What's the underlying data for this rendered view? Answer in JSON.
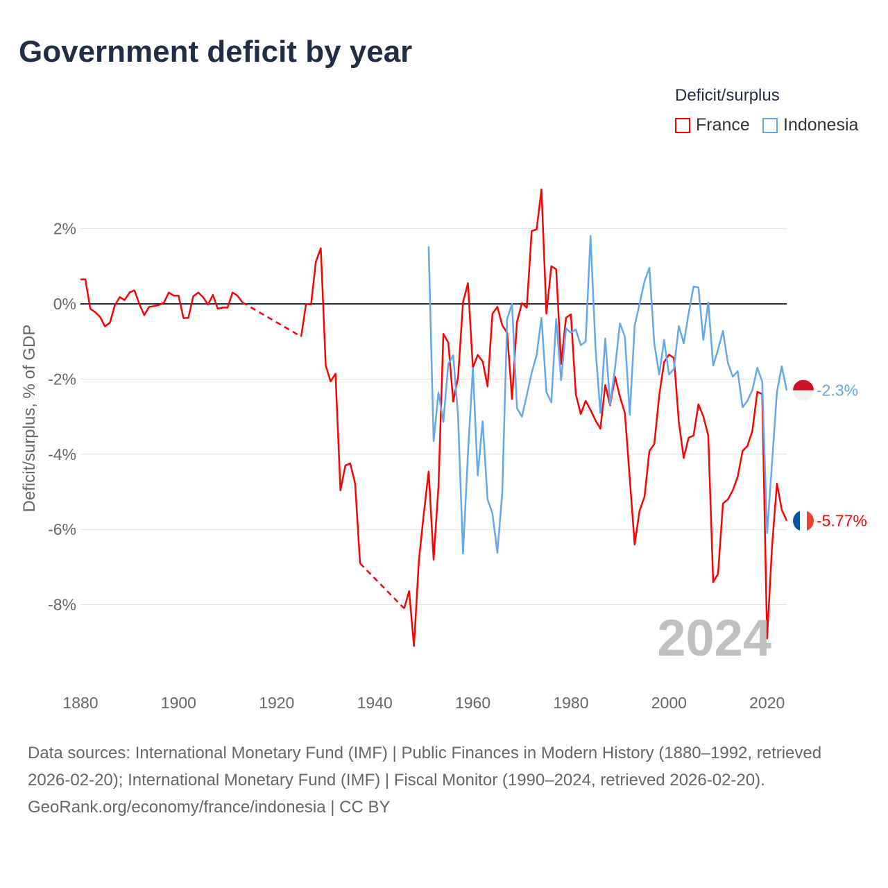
{
  "title": "Government deficit by year",
  "legend": {
    "title": "Deficit/surplus",
    "items": [
      {
        "name": "France",
        "color": "#ff0000"
      },
      {
        "name": "Indonesia",
        "color": "#64a8ea"
      }
    ]
  },
  "year_label": "2024",
  "footer": {
    "sources": "Data sources: International Monetary Fund (IMF) | Public Finances in Modern History (1880–1992, retrieved 2026-02-20); International Monetary Fund (IMF) | Fiscal Monitor (1990–2024, retrieved 2026-02-20).",
    "credit": "GeoRank.org/economy/france/indonesia | CC BY"
  },
  "end_labels": {
    "indonesia": "-2.3%",
    "france": "-5.77%"
  },
  "chart_data": {
    "type": "line",
    "title": "Government deficit by year",
    "xlabel": "",
    "ylabel": "Deficit/surplus, % of GDP",
    "xlim": [
      1880,
      2024
    ],
    "ylim": [
      -10,
      3.3
    ],
    "xticks": [
      1880,
      1900,
      1920,
      1940,
      1960,
      1980,
      2000,
      2020
    ],
    "xtick_labels": [
      "1880",
      "1900",
      "1920",
      "1940",
      "1960",
      "1980",
      "2000",
      "2020"
    ],
    "yticks": [
      2,
      0,
      -2,
      -4,
      -6,
      -8
    ],
    "ytick_labels": [
      "2%",
      "0%",
      "-2%",
      "-4%",
      "-6%",
      "-8%"
    ],
    "grid": true,
    "legend_position": "top-right",
    "series": [
      {
        "name": "France",
        "color": "#ff0000",
        "start_year": 1880,
        "values": [
          0.65,
          0.65,
          -0.13,
          -0.22,
          -0.35,
          -0.6,
          -0.5,
          -0.04,
          0.18,
          0.1,
          0.3,
          0.36,
          0,
          -0.3,
          -0.08,
          -0.06,
          -0.03,
          0.03,
          0.3,
          0.22,
          0.22,
          -0.38,
          -0.37,
          0.2,
          0.3,
          0.18,
          -0.02,
          0.24,
          -0.13,
          -0.1,
          -0.1,
          0.3,
          0.22,
          0.04,
          null,
          null,
          null,
          null,
          null,
          null,
          null,
          null,
          null,
          null,
          null,
          -0.87,
          0,
          -0.02,
          1.12,
          1.48,
          -1.64,
          -2.06,
          -1.86,
          -4.96,
          -4.3,
          -4.24,
          -4.78,
          -6.9,
          null,
          null,
          null,
          null,
          null,
          null,
          null,
          null,
          -8.1,
          -7.64,
          -9.1,
          -6.83,
          -5.57,
          -4.46,
          -6.8,
          -4.83,
          -0.8,
          -1.03,
          -2.6,
          -1.95,
          0.04,
          0.55,
          -1.7,
          -1.36,
          -1.53,
          -2.2,
          -0.26,
          -0.08,
          -0.57,
          -0.77,
          -2.53,
          -0.48,
          0.02,
          -0.1,
          1.94,
          1.98,
          3.05,
          -0.26,
          1.0,
          0.92,
          -1.6,
          -0.37,
          -0.28,
          -2.4,
          -2.93,
          -2.58,
          -2.82,
          -3.1,
          -3.32,
          -2.16,
          -2.7,
          -1.94,
          -2.47,
          -2.9,
          -4.65,
          -6.4,
          -5.5,
          -5.13,
          -3.91,
          -3.73,
          -2.44,
          -1.55,
          -1.35,
          -1.44,
          -3.14,
          -4.1,
          -3.56,
          -3.5,
          -2.67,
          -2.99,
          -3.5,
          -7.4,
          -7.18,
          -5.31,
          -5.2,
          -4.96,
          -4.6,
          -3.91,
          -3.78,
          -3.37,
          -2.34,
          -2.4,
          -8.9,
          -6.46,
          -4.78,
          -5.48,
          -5.77
        ]
      },
      {
        "name": "Indonesia",
        "color": "#64a8ea",
        "start_year": 1951,
        "values": [
          1.53,
          -3.65,
          -2.36,
          -3.14,
          -1.59,
          -1.37,
          -2.99,
          -6.64,
          -4.0,
          -1.7,
          -4.56,
          -3.12,
          -5.2,
          -5.57,
          -6.62,
          -5.02,
          -0.4,
          0,
          -2.77,
          -3.0,
          -2.44,
          -1.83,
          -1.36,
          -0.37,
          -2.34,
          -2.62,
          -0.4,
          -2.03,
          -0.65,
          -0.77,
          -0.68,
          -1.1,
          -1.0,
          1.81,
          -1.14,
          -2.9,
          -0.92,
          -2.68,
          -1.7,
          -0.52,
          -0.87,
          -2.95,
          -0.59,
          0,
          0.6,
          0.96,
          -1.05,
          -1.88,
          -0.96,
          -1.88,
          -1.73,
          -0.59,
          -1.05,
          -0.26,
          0.46,
          0.44,
          -0.96,
          0.04,
          -1.64,
          -1.22,
          -0.72,
          -1.57,
          -1.94,
          -1.79,
          -2.75,
          -2.58,
          -2.29,
          -1.7,
          -2.07,
          -6.1,
          -4.24,
          -2.34,
          -1.66,
          -2.3
        ]
      }
    ]
  }
}
